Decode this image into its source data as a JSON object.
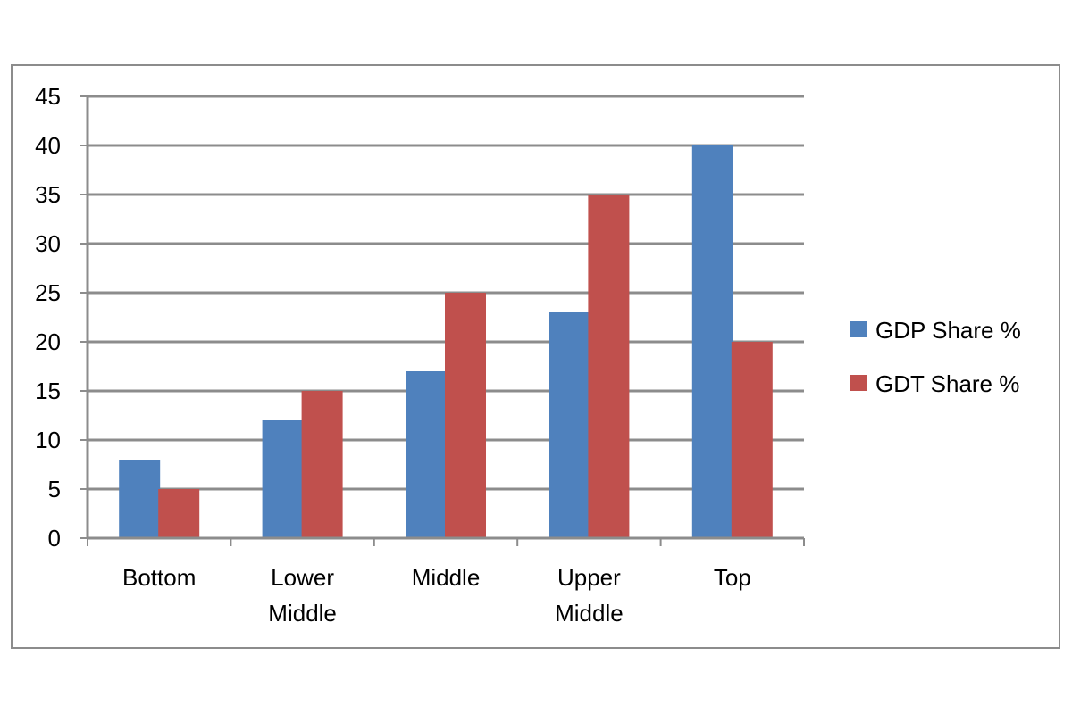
{
  "chart_data": {
    "type": "bar",
    "title": "",
    "xlabel": "",
    "ylabel": "",
    "ylim": [
      0,
      45
    ],
    "ytick_step": 5,
    "grid": true,
    "legend_position": "right",
    "categories": [
      [
        "Bottom"
      ],
      [
        "Lower",
        "Middle"
      ],
      [
        "Middle"
      ],
      [
        "Upper",
        "Middle"
      ],
      [
        "Top"
      ]
    ],
    "series": [
      {
        "name": "GDP Share %",
        "color": "#4f81bd",
        "values": [
          8,
          12,
          17,
          23,
          40
        ]
      },
      {
        "name": "GDT Share %",
        "color": "#c0504d",
        "values": [
          5,
          15,
          25,
          35,
          20
        ]
      }
    ],
    "gridline_color": "#8c8c8c",
    "axis_color": "#8c8c8c"
  }
}
